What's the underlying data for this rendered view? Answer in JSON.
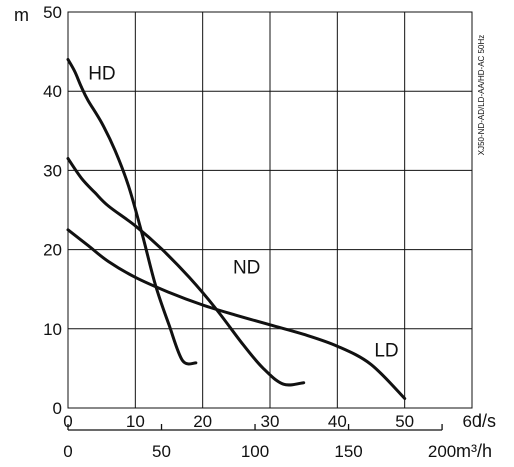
{
  "chart_data": {
    "type": "line",
    "title": "",
    "ylabel": "m",
    "xlabel_primary": "l/s",
    "xlabel_secondary": "m³/h",
    "side_note": "XJ50-ND-AD/LD-AA/HD-AC 50Hz",
    "xlim": [
      0,
      60
    ],
    "ylim": [
      0,
      50
    ],
    "x_ticks": [
      "0",
      "10",
      "20",
      "30",
      "40",
      "50",
      "60"
    ],
    "y_ticks": [
      "0",
      "10",
      "20",
      "30",
      "40",
      "50"
    ],
    "x2_ticks": [
      "0",
      "50",
      "100",
      "150",
      "200"
    ],
    "grid": true,
    "series": [
      {
        "name": "HD",
        "x": [
          0,
          1,
          2,
          3,
          5,
          7,
          9,
          11,
          13,
          15,
          17,
          19
        ],
        "y": [
          44,
          42.5,
          40.5,
          38.8,
          36,
          32.5,
          28,
          22,
          15.5,
          10.5,
          6,
          5.7
        ]
      },
      {
        "name": "ND",
        "x": [
          0,
          2,
          4,
          6,
          10,
          14,
          18,
          22,
          26,
          29,
          32,
          35
        ],
        "y": [
          31.5,
          29,
          27.2,
          25.5,
          23,
          20,
          16.5,
          12.5,
          8,
          5,
          3,
          3.2
        ]
      },
      {
        "name": "LD",
        "x": [
          0,
          3,
          6,
          10,
          15,
          20,
          25,
          30,
          35,
          40,
          45,
          50
        ],
        "y": [
          22.5,
          20.5,
          18.5,
          16.5,
          14.6,
          13,
          11.7,
          10.5,
          9.3,
          7.8,
          5.5,
          1.2
        ]
      }
    ]
  }
}
